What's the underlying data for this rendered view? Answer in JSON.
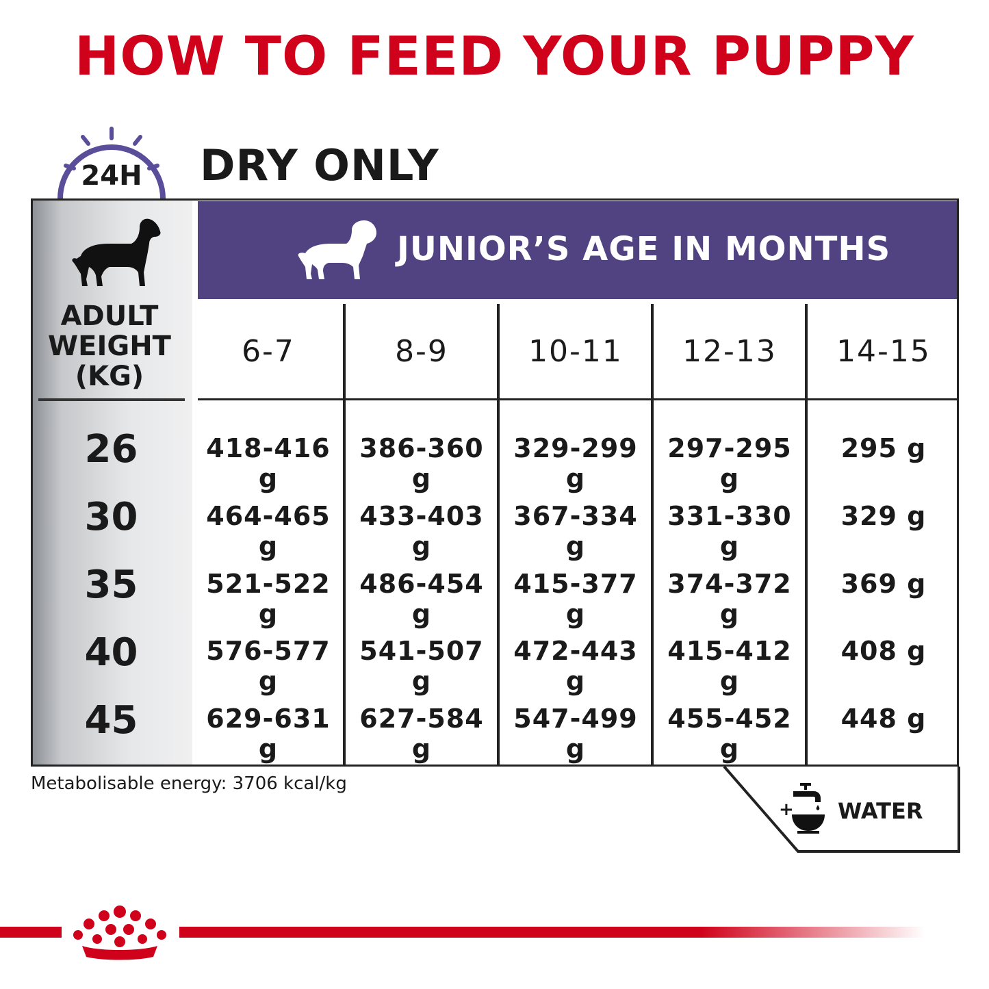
{
  "title": "HOW TO FEED YOUR PUPPY",
  "badge": {
    "label": "24H",
    "icon": "clock-icon"
  },
  "section_title": "DRY ONLY",
  "table": {
    "weight_header": [
      "ADULT",
      "WEIGHT",
      "(KG)"
    ],
    "age_header": "JUNIOR’S AGE IN MONTHS",
    "age_columns": [
      "6-7",
      "8-9",
      "10-11",
      "12-13",
      "14-15"
    ],
    "rows": [
      {
        "weight": "26",
        "values": [
          "418-416 g",
          "386-360 g",
          "329-299 g",
          "297-295 g",
          "295 g"
        ]
      },
      {
        "weight": "30",
        "values": [
          "464-465 g",
          "433-403 g",
          "367-334 g",
          "331-330 g",
          "329 g"
        ]
      },
      {
        "weight": "35",
        "values": [
          "521-522 g",
          "486-454 g",
          "415-377 g",
          "374-372 g",
          "369 g"
        ]
      },
      {
        "weight": "40",
        "values": [
          "576-577 g",
          "541-507 g",
          "472-443 g",
          "415-412 g",
          "408 g"
        ]
      },
      {
        "weight": "45",
        "values": [
          "629-631 g",
          "627-584 g",
          "547-499 g",
          "455-452 g",
          "448 g"
        ]
      }
    ]
  },
  "energy_note": "Metabolisable energy: 3706 kcal/kg",
  "water": {
    "plus": "+",
    "label": "WATER",
    "icon": "water-bowl-icon"
  },
  "colors": {
    "brand_red": "#d0021b",
    "banner_purple": "#514281",
    "clock_purple": "#5a4d9a"
  }
}
